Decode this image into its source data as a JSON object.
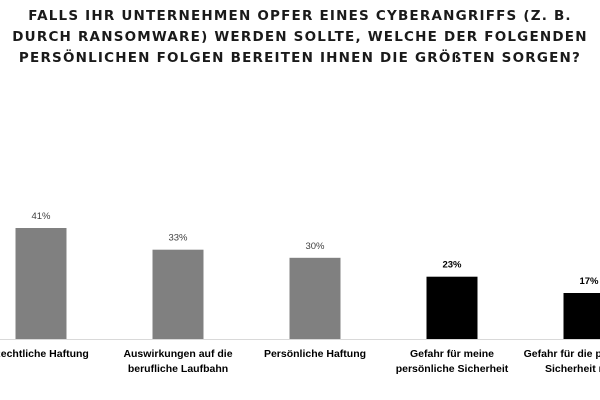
{
  "chart_data": {
    "type": "bar",
    "title": "FALLS IHR UNTERNEHMEN OPFER EINES CYBERANGRIFFS (Z. B. DURCH RANSOMWARE) WERDEN SOLLTE, WELCHE DER FOLGENDEN PERSÖNLICHEN FOLGEN BEREITEN IHNEN DIE GRÖßTEN SORGEN?",
    "categories": [
      "Rechtliche Haftung",
      "Auswirkungen auf die berufliche Laufbahn",
      "Persönliche Haftung",
      "Gefahr für meine persönliche Sicherheit",
      "Gefahr für die persönliche Sicherheit meiner"
    ],
    "category_lines": [
      [
        "Rechtliche Haftung"
      ],
      [
        "Auswirkungen auf die",
        "berufliche Laufbahn"
      ],
      [
        "Persönliche Haftung"
      ],
      [
        "Gefahr für meine",
        "persönliche Sicherheit"
      ],
      [
        "Gefahr für die persönliche",
        "Sicherheit meiner"
      ]
    ],
    "values": [
      41,
      33,
      30,
      23,
      17
    ],
    "value_labels": [
      "41%",
      "33%",
      "30%",
      "23%",
      "17%"
    ],
    "unit": "%",
    "bar_colors": [
      "#808080",
      "#808080",
      "#808080",
      "#000000",
      "#000000"
    ],
    "value_label_colors": [
      "#404040",
      "#404040",
      "#404040",
      "#000000",
      "#000000"
    ],
    "axis_line_color": "#d9d9d9",
    "xlabel": "",
    "ylabel": "",
    "ylim": [
      0,
      41
    ],
    "grid": false,
    "legend": "none"
  }
}
